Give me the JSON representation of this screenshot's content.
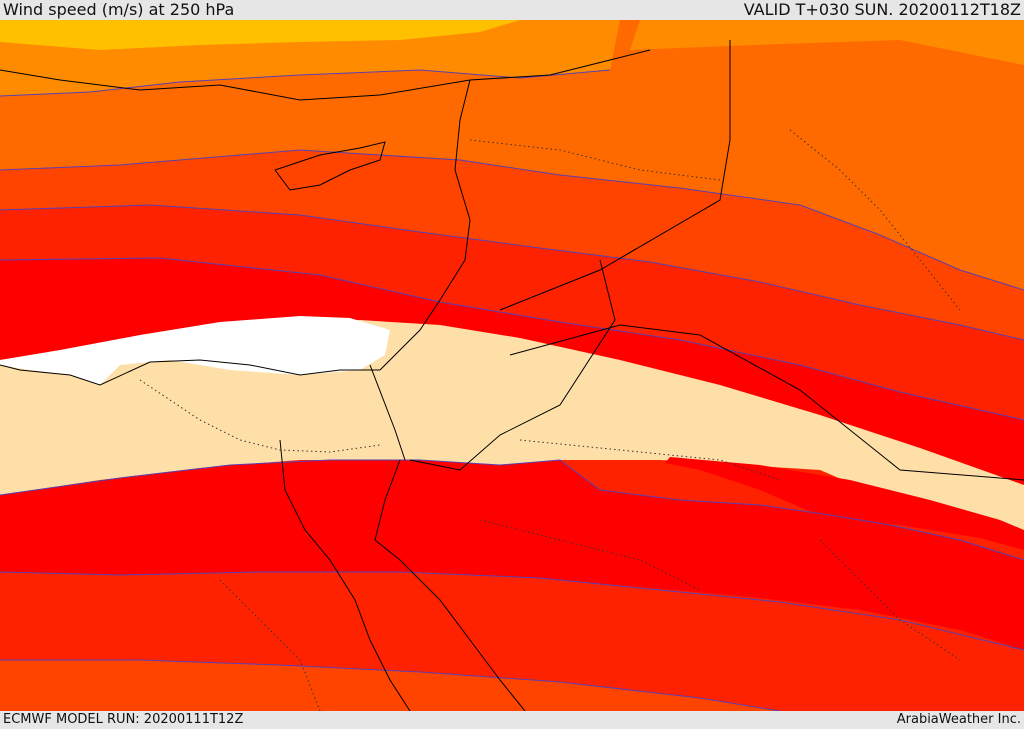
{
  "header": {
    "title": "Wind speed (m/s) at 250 hPa",
    "valid": "VALID T+030 SUN. 20200112T18Z"
  },
  "footer": {
    "model_run": "ECMWF MODEL RUN: 20200111T12Z",
    "credit": "ArabiaWeather Inc."
  },
  "map": {
    "variable": "wind speed",
    "level": "250 hPa",
    "band_colors": {
      "very_light": "#ffdfa8",
      "white": "#ffffff",
      "red": "#ff0000",
      "red_orange": "#ff2200",
      "orange_red": "#ff4400",
      "orange": "#ff6a00",
      "amber": "#ff8c00",
      "yellow_orange": "#ffc000",
      "contour": "#5a3fb0",
      "coast": "#000000"
    }
  }
}
